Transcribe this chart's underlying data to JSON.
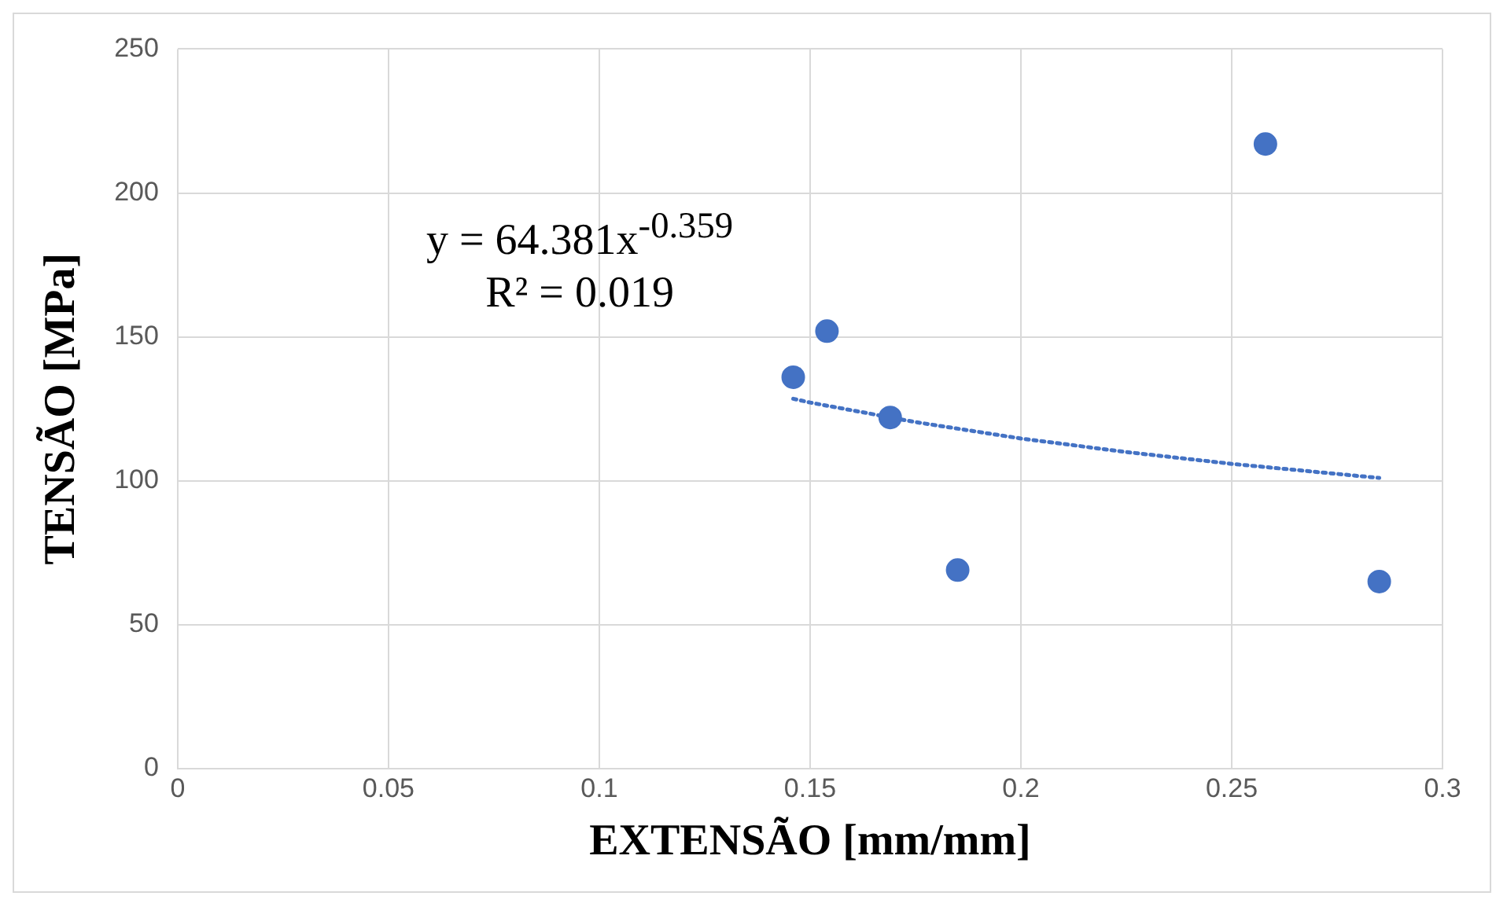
{
  "chart_data": {
    "type": "scatter",
    "xlabel": "EXTENSÃO [mm/mm]",
    "ylabel": "TENSÃO [MPa]",
    "xlim": [
      0,
      0.3
    ],
    "xticks": [
      0,
      0.05,
      0.1,
      0.15,
      0.2,
      0.25,
      0.3
    ],
    "ylim": [
      0,
      250
    ],
    "yticks": [
      0,
      50,
      100,
      150,
      200,
      250
    ],
    "grid": true,
    "legend": false,
    "annotations": [
      "y = 64.381x$^{-0.359}$",
      "R² = 0.019"
    ],
    "series": [
      {
        "type": "scatter",
        "color": "#4472c4",
        "marker": "circle",
        "x": [
          0.146,
          0.154,
          0.169,
          0.185,
          0.258,
          0.285
        ],
        "values": [
          136,
          152,
          122,
          69,
          217,
          65
        ]
      },
      {
        "type": "line",
        "color": "#4472c4",
        "marker": "none",
        "line_style": "dotted",
        "x": [
          0.146,
          0.15,
          0.175,
          0.2,
          0.225,
          0.25,
          0.285
        ],
        "values": [
          128.5,
          127.2,
          120.4,
          114.7,
          110.0,
          105.9,
          101.0
        ]
      }
    ]
  }
}
